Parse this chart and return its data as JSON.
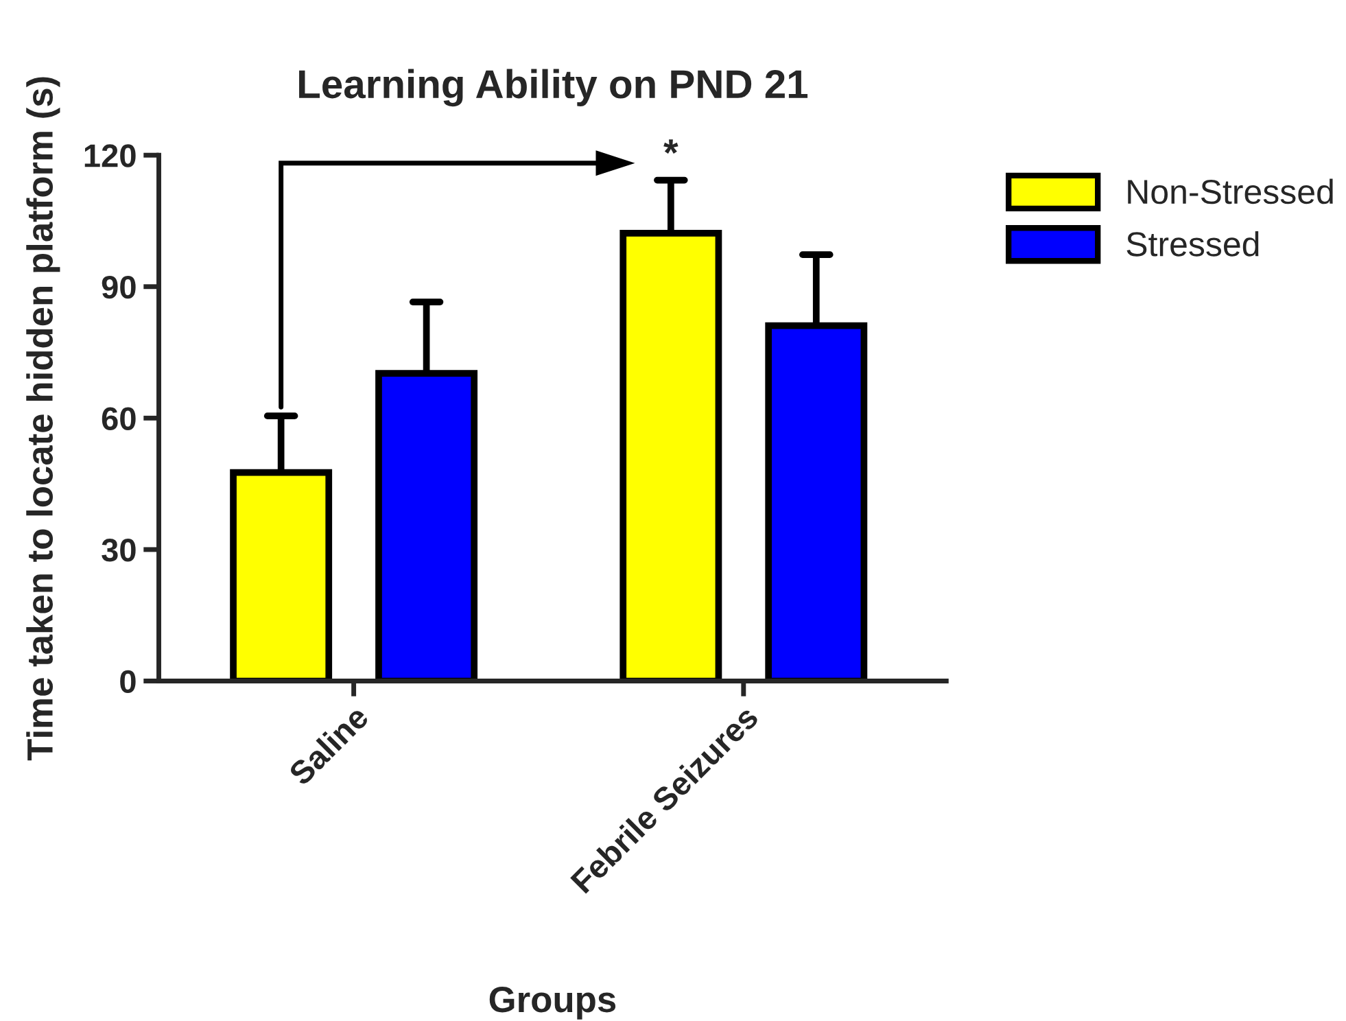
{
  "chart_data": {
    "type": "bar",
    "title": "Learning Ability on PND 21",
    "xlabel": "Groups",
    "ylabel": "Time taken to locate hidden platform (s)",
    "categories": [
      "Saline",
      "Febrile Seizures"
    ],
    "series": [
      {
        "name": "Non-Stressed",
        "color": "#ffff00",
        "values": [
          47.6,
          102.2
        ],
        "errors": [
          [
            47.6,
            60.5
          ],
          [
            102.2,
            114.3
          ]
        ]
      },
      {
        "name": "Stressed",
        "color": "#0000ff",
        "values": [
          70.2,
          81.1
        ],
        "errors": [
          [
            70.2,
            86.5
          ],
          [
            81.1,
            97.3
          ]
        ]
      }
    ],
    "ylim": [
      0,
      120
    ],
    "yticks": [
      0,
      30,
      60,
      90,
      120
    ],
    "grid": false,
    "legend": "top right",
    "annotations": [
      "*"
    ]
  }
}
